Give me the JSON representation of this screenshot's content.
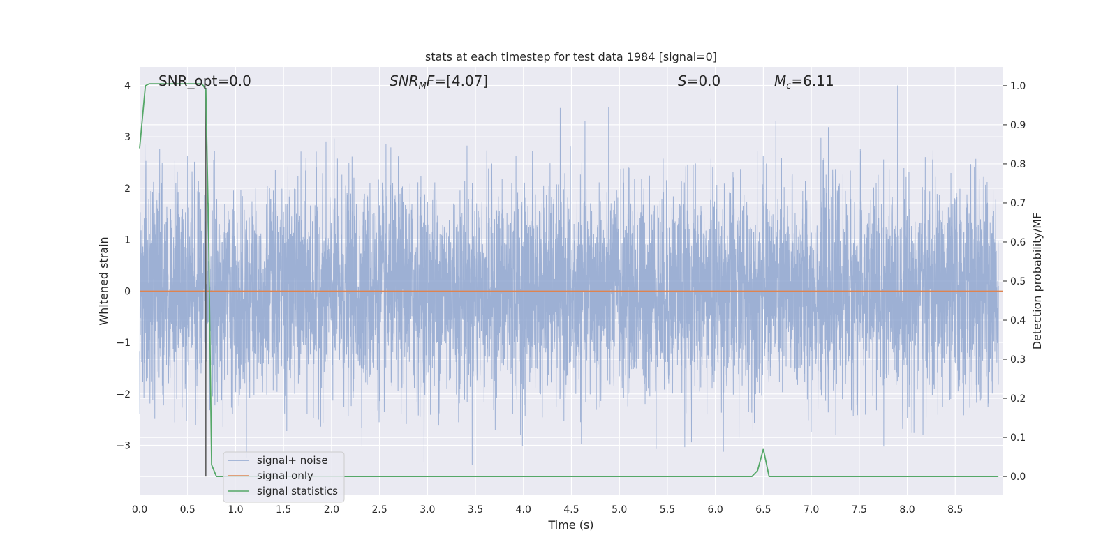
{
  "chart_data": {
    "type": "line",
    "title": "stats at each timestep for test data 1984 [signal=0]",
    "xlabel": "Time (s)",
    "ylabel": "Whitened strain",
    "y2label": "Detection probability/MF",
    "xlim": [
      0.0,
      9.0
    ],
    "ylim": [
      -3.97,
      4.36
    ],
    "y2lim": [
      -0.048,
      1.048
    ],
    "grid": true,
    "legend_position": "bottom-left",
    "xticks": [
      "0.0",
      "0.5",
      "1.0",
      "1.5",
      "2.0",
      "2.5",
      "3.0",
      "3.5",
      "4.0",
      "4.5",
      "5.0",
      "5.5",
      "6.0",
      "6.5",
      "7.0",
      "7.5",
      "8.0",
      "8.5"
    ],
    "yticks": [
      "−3",
      "−2",
      "−1",
      "0",
      "1",
      "2",
      "3",
      "4"
    ],
    "y2ticks": [
      "0.0",
      "0.1",
      "0.2",
      "0.3",
      "0.4",
      "0.5",
      "0.6",
      "0.7",
      "0.8",
      "0.9",
      "1.0"
    ],
    "annotations": {
      "snr_opt": "SNR_opt=0.0",
      "snr_mf_main": "SNR",
      "snr_mf_sub": "M",
      "snr_mf_tail": "F",
      "snr_mf_value": "=[4.07]",
      "s_symbol": "S",
      "s_value": "=0.0",
      "mc_main": "M",
      "mc_sub": "c",
      "mc_value": "=6.11"
    },
    "marker_line_x": 0.69,
    "series": [
      {
        "name": "signal+ noise",
        "color": "#8fa6cf",
        "kind": "noise",
        "approx_envelope": {
          "low": -3.6,
          "high": 4.0,
          "typical_sigma": 1.0
        }
      },
      {
        "name": "signal only",
        "color": "#dd8452",
        "x": [
          0.0,
          9.0
        ],
        "y": [
          0.0,
          0.0
        ]
      },
      {
        "name": "signal statistics",
        "color": "#55a868",
        "axis": "right",
        "x": [
          0.0,
          0.06,
          0.1,
          0.15,
          0.2,
          0.3,
          0.4,
          0.5,
          0.6,
          0.65,
          0.69,
          0.72,
          0.75,
          0.8,
          0.9,
          1.0,
          2.0,
          3.0,
          4.0,
          5.0,
          6.0,
          6.38,
          6.44,
          6.5,
          6.56,
          6.62,
          7.0,
          8.0,
          8.95
        ],
        "y": [
          0.84,
          1.0,
          1.005,
          1.005,
          1.005,
          1.005,
          1.005,
          1.005,
          1.005,
          1.005,
          0.99,
          0.6,
          0.03,
          0.0,
          0.0,
          0.0,
          0.0,
          0.0,
          0.0,
          0.0,
          0.0,
          0.0,
          0.015,
          0.07,
          0.0,
          0.0,
          0.0,
          0.0,
          0.0
        ]
      }
    ]
  }
}
